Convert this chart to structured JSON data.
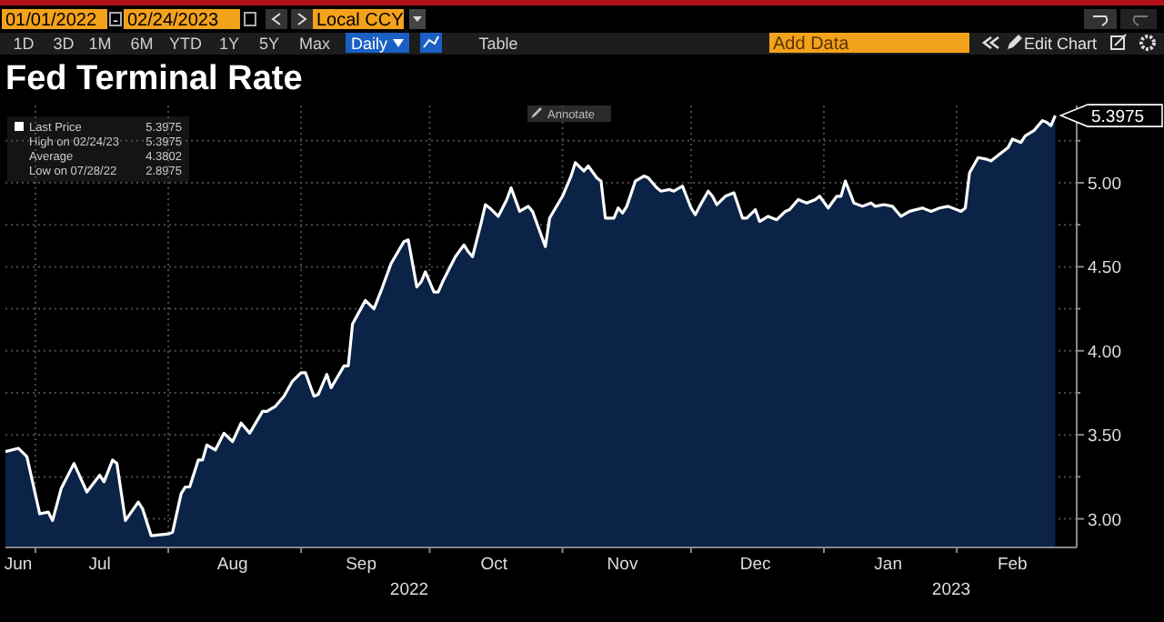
{
  "chart_data": {
    "type": "area",
    "title": "Fed Terminal Rate",
    "x": [
      "2022-06-24",
      "2022-06-27",
      "2022-06-29",
      "2022-07-02",
      "2022-07-04",
      "2022-07-05",
      "2022-07-07",
      "2022-07-10",
      "2022-07-13",
      "2022-07-16",
      "2022-07-17",
      "2022-07-19",
      "2022-07-20",
      "2022-07-22",
      "2022-07-25",
      "2022-07-26",
      "2022-07-28",
      "2022-08-01",
      "2022-08-02",
      "2022-08-04",
      "2022-08-05",
      "2022-08-06",
      "2022-08-08",
      "2022-08-09",
      "2022-08-10",
      "2022-08-12",
      "2022-08-14",
      "2022-08-16",
      "2022-08-18",
      "2022-08-20",
      "2022-08-23",
      "2022-08-24",
      "2022-08-26",
      "2022-08-28",
      "2022-08-30",
      "2022-09-01",
      "2022-09-02",
      "2022-09-04",
      "2022-09-05",
      "2022-09-07",
      "2022-09-08",
      "2022-09-11",
      "2022-09-12",
      "2022-09-13",
      "2022-09-16",
      "2022-09-18",
      "2022-09-20",
      "2022-09-22",
      "2022-09-25",
      "2022-09-26",
      "2022-09-28",
      "2022-09-29",
      "2022-09-30",
      "2022-10-02",
      "2022-10-03",
      "2022-10-04",
      "2022-10-07",
      "2022-10-09",
      "2022-10-10",
      "2022-10-11",
      "2022-10-13",
      "2022-10-14",
      "2022-10-15",
      "2022-10-17",
      "2022-10-19",
      "2022-10-20",
      "2022-10-22",
      "2022-10-24",
      "2022-10-25",
      "2022-10-28",
      "2022-10-29",
      "2022-11-01",
      "2022-11-03",
      "2022-11-04",
      "2022-11-06",
      "2022-11-07",
      "2022-11-09",
      "2022-11-10",
      "2022-11-11",
      "2022-11-13",
      "2022-11-14",
      "2022-11-15",
      "2022-11-16",
      "2022-11-18",
      "2022-11-20",
      "2022-11-21",
      "2022-11-23",
      "2022-11-24",
      "2022-11-26",
      "2022-11-27",
      "2022-11-29",
      "2022-12-01",
      "2022-12-02",
      "2022-12-03",
      "2022-12-05",
      "2022-12-06",
      "2022-12-07",
      "2022-12-09",
      "2022-12-11",
      "2022-12-13",
      "2022-12-14",
      "2022-12-16",
      "2022-12-17",
      "2022-12-19",
      "2022-12-21",
      "2022-12-23",
      "2022-12-24",
      "2022-12-26",
      "2022-12-28",
      "2022-12-30",
      "2022-12-31",
      "2023-01-02",
      "2023-01-04",
      "2023-01-05",
      "2023-01-06",
      "2023-01-08",
      "2023-01-10",
      "2023-01-12",
      "2023-01-13",
      "2023-01-15",
      "2023-01-17",
      "2023-01-19",
      "2023-01-21",
      "2023-01-24",
      "2023-01-26",
      "2023-01-28",
      "2023-01-30",
      "2023-02-02",
      "2023-02-03",
      "2023-02-04",
      "2023-02-06",
      "2023-02-08",
      "2023-02-09",
      "2023-02-11",
      "2023-02-13",
      "2023-02-14",
      "2023-02-16",
      "2023-02-17",
      "2023-02-19",
      "2023-02-21",
      "2023-02-22",
      "2023-02-23",
      "2023-02-24"
    ],
    "series": [
      {
        "name": "Last Price",
        "color": "#ffffff",
        "values": [
          3.4,
          3.42,
          3.37,
          3.03,
          3.04,
          2.99,
          3.18,
          3.33,
          3.16,
          3.26,
          3.22,
          3.35,
          3.33,
          2.99,
          3.1,
          3.06,
          2.9,
          2.91,
          2.92,
          3.15,
          3.19,
          3.19,
          3.35,
          3.35,
          3.44,
          3.41,
          3.51,
          3.46,
          3.57,
          3.51,
          3.64,
          3.64,
          3.67,
          3.73,
          3.82,
          3.87,
          3.87,
          3.73,
          3.74,
          3.86,
          3.78,
          3.91,
          3.91,
          4.16,
          4.3,
          4.25,
          4.38,
          4.52,
          4.65,
          4.66,
          4.38,
          4.41,
          4.47,
          4.35,
          4.35,
          4.41,
          4.56,
          4.63,
          4.59,
          4.56,
          4.76,
          4.87,
          4.85,
          4.8,
          4.9,
          4.97,
          4.83,
          4.86,
          4.83,
          4.62,
          4.79,
          4.92,
          5.04,
          5.12,
          5.07,
          5.1,
          5.03,
          5.01,
          4.79,
          4.79,
          4.85,
          4.82,
          4.86,
          5.01,
          5.04,
          5.03,
          4.97,
          4.95,
          4.96,
          4.95,
          4.98,
          4.85,
          4.81,
          4.86,
          4.95,
          4.92,
          4.87,
          4.92,
          4.94,
          4.79,
          4.79,
          4.84,
          4.77,
          4.8,
          4.78,
          4.83,
          4.84,
          4.9,
          4.88,
          4.9,
          4.92,
          4.85,
          4.92,
          4.92,
          5.01,
          4.88,
          4.86,
          4.88,
          4.86,
          4.87,
          4.86,
          4.8,
          4.83,
          4.85,
          4.83,
          4.85,
          4.86,
          4.83,
          4.85,
          5.06,
          5.15,
          5.14,
          5.13,
          5.17,
          5.21,
          5.26,
          5.24,
          5.28,
          5.31,
          5.37,
          5.36,
          5.34,
          5.4
        ]
      }
    ],
    "xlim": [
      "2022-06-24",
      "2023-03-01"
    ],
    "xticks": [
      {
        "value": "2022-06-27",
        "label": "Jun"
      },
      {
        "value": "2022-07-01",
        "label": null
      },
      {
        "value": "2022-07-16",
        "label": "Jul"
      },
      {
        "value": "2022-08-01",
        "label": null
      },
      {
        "value": "2022-08-16",
        "label": "Aug"
      },
      {
        "value": "2022-09-01",
        "label": null
      },
      {
        "value": "2022-09-15",
        "label": "Sep"
      },
      {
        "value": "2022-10-01",
        "label": null
      },
      {
        "value": "2022-10-16",
        "label": "Oct"
      },
      {
        "value": "2022-11-01",
        "label": null
      },
      {
        "value": "2022-11-15",
        "label": "Nov"
      },
      {
        "value": "2022-12-01",
        "label": null
      },
      {
        "value": "2022-12-16",
        "label": "Dec"
      },
      {
        "value": "2023-01-01",
        "label": null
      },
      {
        "value": "2023-01-16",
        "label": "Jan"
      },
      {
        "value": "2023-02-01",
        "label": null
      },
      {
        "value": "2023-02-14",
        "label": "Feb"
      }
    ],
    "ylim": [
      2.83,
      5.46
    ],
    "yticks": [
      {
        "value": 3,
        "label": "3.00"
      },
      {
        "value": 3.25,
        "label": null
      },
      {
        "value": 3.5,
        "label": "3.50"
      },
      {
        "value": 3.75,
        "label": null
      },
      {
        "value": 4,
        "label": "4.00"
      },
      {
        "value": 4.25,
        "label": null
      },
      {
        "value": 4.5,
        "label": "4.50"
      },
      {
        "value": 4.75,
        "label": null
      },
      {
        "value": 5,
        "label": "5.00"
      },
      {
        "value": 5.25,
        "label": null
      }
    ],
    "grid": true,
    "legend": "top left",
    "annotations": [
      "01/01/2022",
      "-",
      "02/24/2023",
      "Local CCY",
      "1D",
      "3D",
      "1M",
      "6M",
      "YTD",
      "1Y",
      "5Y",
      "Max",
      "Daily",
      "Table",
      "Add Data",
      "Edit Chart",
      "Annotate",
      "5.3975",
      "High on 02/24/23",
      "5.3975",
      "Average",
      "4.3802",
      "Low on 07/28/22",
      "2.8975",
      "2022",
      "2023",
      {
        "text": "5.3975",
        "x": "2023-02-24",
        "y": 5.4
      }
    ]
  }
}
